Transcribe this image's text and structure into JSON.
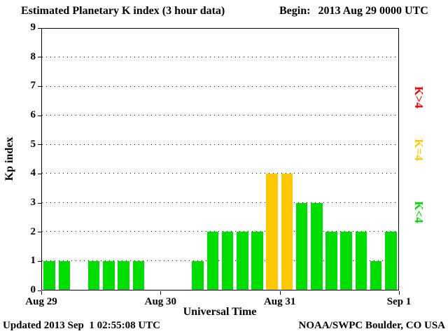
{
  "header": {
    "title": "Estimated Planetary K index (3 hour data)",
    "begin_label": "Begin:",
    "begin_value": "2013 Aug 29 0000 UTC"
  },
  "footer": {
    "updated": "Updated 2013 Sep  1 02:55:08 UTC",
    "source": "NOAA/SWPC Boulder, CO USA"
  },
  "chart_data": {
    "type": "bar",
    "title": "Estimated Planetary K index (3 hour data)",
    "begin": "2013 Aug 29 0000 UTC",
    "xlabel": "Universal Time",
    "ylabel": "Kp index",
    "ylim": [
      0,
      9
    ],
    "y_ticks": [
      0,
      1,
      2,
      3,
      4,
      5,
      6,
      7,
      8,
      9
    ],
    "x_tick_labels": [
      "Aug 29",
      "Aug 30",
      "Aug 31",
      "Sep 1"
    ],
    "interval_hours": 3,
    "bars_per_day": 8,
    "values": [
      1,
      1,
      0,
      1,
      1,
      1,
      1,
      0,
      0,
      0,
      1,
      2,
      2,
      2,
      2,
      4,
      4,
      3,
      3,
      2,
      2,
      2,
      1,
      2
    ],
    "bar_colors": {
      "below4": "#00dd00",
      "equal4": "#ffc800",
      "above4": "#ff0000"
    },
    "color_rule": "green K<4, yellow K=4, red K>4",
    "grid": "horizontal dotted lines at integer Kp values",
    "legend_position": "right, rotated vertical",
    "legend": [
      {
        "label": "K>4",
        "color": "#ff0000"
      },
      {
        "label": "K=4",
        "color": "#ffc800"
      },
      {
        "label": "K<4",
        "color": "#00dd00"
      }
    ]
  }
}
